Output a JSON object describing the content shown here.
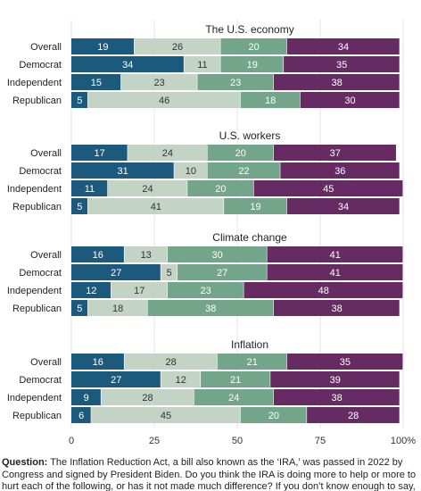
{
  "chart_data": {
    "type": "bar",
    "orientation": "horizontal",
    "stacked": true,
    "xlim": [
      0,
      100
    ],
    "x_ticks": [
      "0",
      "25",
      "50",
      "75",
      "100%"
    ],
    "segment_colors": [
      "#1c5a7d",
      "#c3d3c5",
      "#73a58a",
      "#652b62"
    ],
    "label_colors": [
      "#ffffff",
      "#333333",
      "#ffffff",
      "#ffffff"
    ],
    "legend": "none",
    "panels": [
      {
        "title": "The U.S. economy",
        "rows": [
          {
            "label": "Overall",
            "values": [
              19,
              26,
              20,
              34
            ]
          },
          {
            "label": "Democrat",
            "values": [
              34,
              11,
              19,
              35
            ]
          },
          {
            "label": "Independent",
            "values": [
              15,
              23,
              23,
              38
            ]
          },
          {
            "label": "Republican",
            "values": [
              5,
              46,
              18,
              30
            ]
          }
        ]
      },
      {
        "title": "U.S. workers",
        "rows": [
          {
            "label": "Overall",
            "values": [
              17,
              24,
              20,
              37
            ]
          },
          {
            "label": "Democrat",
            "values": [
              31,
              10,
              22,
              36
            ]
          },
          {
            "label": "Independent",
            "values": [
              11,
              24,
              20,
              45
            ]
          },
          {
            "label": "Republican",
            "values": [
              5,
              41,
              19,
              34
            ]
          }
        ]
      },
      {
        "title": "Climate change",
        "rows": [
          {
            "label": "Overall",
            "values": [
              16,
              13,
              30,
              41
            ]
          },
          {
            "label": "Democrat",
            "values": [
              27,
              5,
              27,
              41
            ]
          },
          {
            "label": "Independent",
            "values": [
              12,
              17,
              23,
              48
            ]
          },
          {
            "label": "Republican",
            "values": [
              5,
              18,
              38,
              38
            ]
          }
        ]
      },
      {
        "title": "Inflation",
        "rows": [
          {
            "label": "Overall",
            "values": [
              16,
              28,
              21,
              35
            ]
          },
          {
            "label": "Democrat",
            "values": [
              27,
              12,
              21,
              39
            ]
          },
          {
            "label": "Independent",
            "values": [
              9,
              28,
              24,
              38
            ]
          },
          {
            "label": "Republican",
            "values": [
              6,
              45,
              20,
              28
            ]
          }
        ]
      }
    ]
  },
  "note": {
    "label": "Question:",
    "text": "The Inflation Reduction Act, a bill also known as the ‘IRA,’ was passed in 2022 by Congress and signed by President Biden. Do you think the IRA is doing more to help or more to hurt each of the following, or has it not made much difference? If you don’t know enough to say,"
  }
}
